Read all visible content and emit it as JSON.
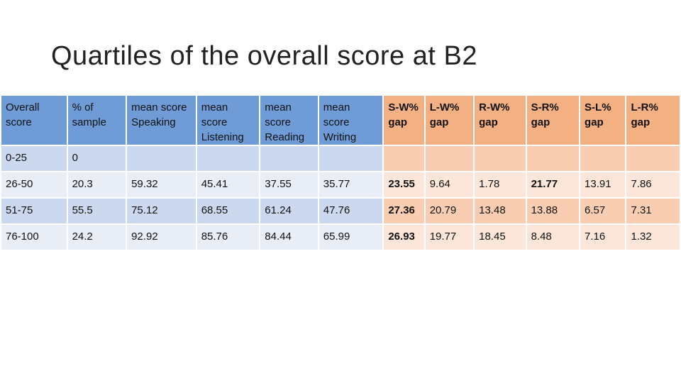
{
  "title": "Quartiles of the overall score at B2",
  "table": {
    "headers": [
      "Overall score",
      "% of sample",
      "mean score Speaking",
      "mean score Listening",
      "mean score Reading",
      "mean score Writing",
      "S-W% gap",
      "L-W% gap",
      "R-W% gap",
      "S-R% gap",
      "S-L% gap",
      "L-R% gap"
    ],
    "rows": [
      [
        "0-25",
        "0",
        "",
        "",
        "",
        "",
        "",
        "",
        "",
        "",
        "",
        ""
      ],
      [
        "26-50",
        "20.3",
        "59.32",
        "45.41",
        "37.55",
        "35.77",
        "23.55",
        "9.64",
        "1.78",
        "21.77",
        "13.91",
        "7.86"
      ],
      [
        "51-75",
        "55.5",
        "75.12",
        "68.55",
        "61.24",
        "47.76",
        "27.36",
        "20.79",
        "13.48",
        "13.88",
        "6.57",
        "7.31"
      ],
      [
        "76-100",
        "24.2",
        "92.92",
        "85.76",
        "84.44",
        "65.99",
        "26.93",
        "19.77",
        "18.45",
        "8.48",
        "7.16",
        "1.32"
      ]
    ]
  },
  "colors": {
    "header_blue": "#6f9bd6",
    "header_orange": "#f3b183",
    "row_blue_dark": "#ccd8ed",
    "row_blue_light": "#e8edf6",
    "row_orange_dark": "#f8cdb1",
    "row_orange_light": "#fbe6d9"
  }
}
